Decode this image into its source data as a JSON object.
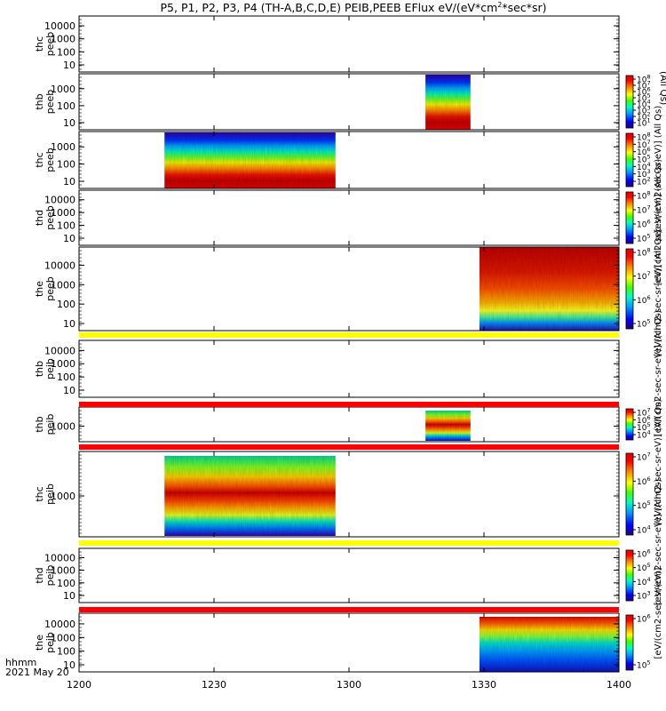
{
  "chart_data": {
    "type": "heatmap",
    "title": "P5, P1, P2, P3, P4 (TH-A,B,C,D,E) PEIB,PEEB EFlux eV/(eV*cm",
    "title_sup": "2",
    "title_tail": "*sec*sr)",
    "x_ticks": [
      "1200",
      "1230",
      "1300",
      "1330",
      "1400"
    ],
    "x_start_label": "hhmm",
    "date_label": "2021 May 20",
    "panels": [
      {
        "probe_label": "thc",
        "type_label": "peeb",
        "yticks": [
          "10",
          "100",
          "1000",
          "10000"
        ],
        "data": [],
        "colorbar": null
      },
      {
        "probe_label": "thb",
        "type_label": "peeb",
        "yticks": [
          "10",
          "100",
          "1000"
        ],
        "data": [
          {
            "start": 77,
            "end": 87,
            "style": "electron_short"
          }
        ],
        "colorbar": {
          "ticks": [
            "10",
            "10",
            "10",
            "10",
            "10",
            "10",
            "10",
            "10"
          ],
          "exps": [
            "1",
            "2",
            "3",
            "4",
            "5",
            "6",
            "7",
            "8"
          ]
        }
      },
      {
        "probe_label": "thc",
        "type_label": "peeb",
        "yticks": [
          "10",
          "100",
          "1000"
        ],
        "data": [
          {
            "start": 19,
            "end": 57,
            "style": "electron"
          }
        ],
        "colorbar": {
          "ticks": [
            "10",
            "10",
            "10",
            "10",
            "10",
            "10",
            "10"
          ],
          "exps": [
            "2",
            "3",
            "4",
            "5",
            "6",
            "7",
            "8"
          ]
        }
      },
      {
        "probe_label": "thd",
        "type_label": "peeb",
        "yticks": [
          "10",
          "100",
          "1000",
          "10000"
        ],
        "data": [],
        "colorbar": {
          "ticks": [
            "10",
            "10",
            "10",
            "10"
          ],
          "exps": [
            "5",
            "6",
            "7",
            "8"
          ]
        }
      },
      {
        "probe_label": "the",
        "type_label": "peeb",
        "yticks": [
          "10",
          "100",
          "1000",
          "10000"
        ],
        "data": [
          {
            "start": 89,
            "end": 120,
            "style": "electron_the"
          }
        ],
        "colorbar": {
          "ticks": [
            "10",
            "10",
            "10",
            "10"
          ],
          "exps": [
            "5",
            "6",
            "7",
            "8"
          ]
        }
      },
      {
        "probe_label": "thb",
        "type_label": "peib",
        "yticks": [
          "10",
          "100",
          "1000",
          "10000"
        ],
        "data": [],
        "colorbar": null
      },
      {
        "probe_label": "thb",
        "type_label": "peib",
        "yticks": [
          "1000"
        ],
        "data": [
          {
            "start": 77,
            "end": 87,
            "style": "ion_short"
          }
        ],
        "colorbar": {
          "ticks": [
            "10",
            "10",
            "10",
            "10"
          ],
          "exps": [
            "4",
            "5",
            "6",
            "7"
          ]
        }
      },
      {
        "probe_label": "thc",
        "type_label": "peib",
        "yticks": [
          "1000"
        ],
        "data": [
          {
            "start": 19,
            "end": 57,
            "style": "ion"
          }
        ],
        "colorbar": {
          "ticks": [
            "10",
            "10",
            "10",
            "10"
          ],
          "exps": [
            "4",
            "5",
            "6",
            "7"
          ]
        }
      },
      {
        "probe_label": "thd",
        "type_label": "peib",
        "yticks": [
          "10",
          "100",
          "1000",
          "10000"
        ],
        "data": [],
        "colorbar": {
          "ticks": [
            "10",
            "10",
            "10",
            "10"
          ],
          "exps": [
            "3",
            "4",
            "5",
            "6"
          ]
        }
      },
      {
        "probe_label": "the",
        "type_label": "peib",
        "yticks": [
          "10",
          "100",
          "1000",
          "10000"
        ],
        "data": [
          {
            "start": 89,
            "end": 120,
            "style": "ion_the"
          }
        ],
        "colorbar": {
          "ticks": [
            "10",
            "10"
          ],
          "exps": [
            "5",
            "6"
          ]
        }
      }
    ],
    "colorbar_labels": [
      "(All Qs)",
      "[eV/(cm2-sec-sr-eV)] (All Qs)",
      "[eV/(cm2-sec-sr-eV)] (All Qs)",
      "[eV/(cm2-sec-sr-eV)] (All Qs)",
      "[eV/(cm2-sec-sr-eV)] (All Qs)",
      "[eV/(cm2-sec-sr-eV)] (All Qs)",
      "[eV/(cm2-sec-sr-eV)] (All Qs)",
      "[eV/(cm2-sec-sr-eV)]"
    ],
    "x_range_minutes": [
      0,
      120
    ]
  },
  "colors": {
    "flag_yellow": "#ffff00",
    "flag_red": "#ff0000",
    "frame": "#000000"
  }
}
